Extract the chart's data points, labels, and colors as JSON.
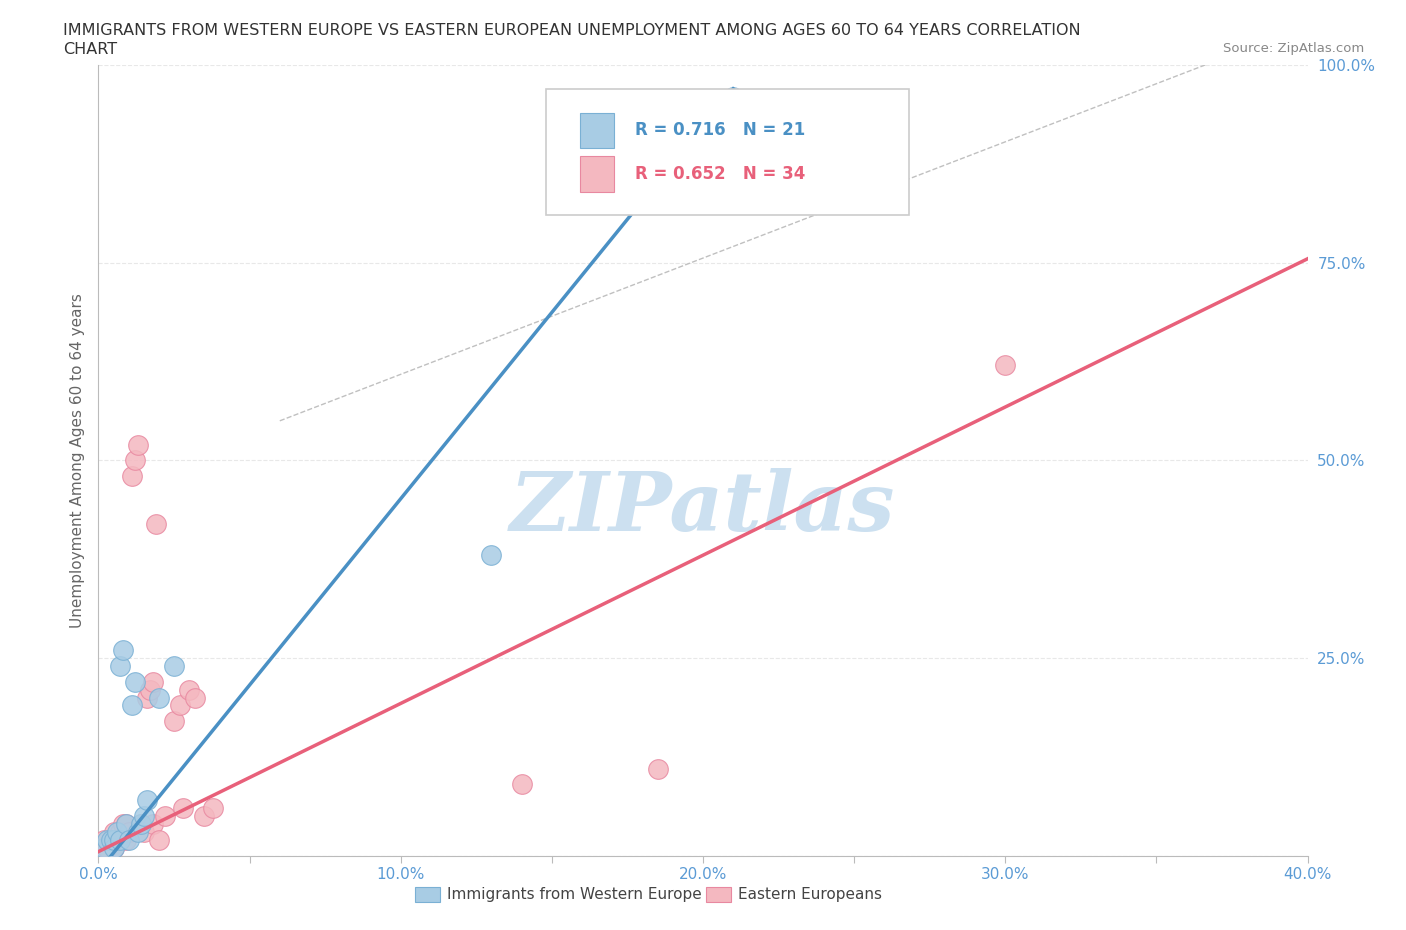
{
  "title_line1": "IMMIGRANTS FROM WESTERN EUROPE VS EASTERN EUROPEAN UNEMPLOYMENT AMONG AGES 60 TO 64 YEARS CORRELATION",
  "title_line2": "CHART",
  "source": "Source: ZipAtlas.com",
  "ylabel": "Unemployment Among Ages 60 to 64 years",
  "xlim": [
    0.0,
    0.4
  ],
  "ylim": [
    0.0,
    1.0
  ],
  "xtick_labels": [
    "0.0%",
    "",
    "10.0%",
    "",
    "20.0%",
    "",
    "30.0%",
    "",
    "40.0%"
  ],
  "xtick_vals": [
    0.0,
    0.05,
    0.1,
    0.15,
    0.2,
    0.25,
    0.3,
    0.35,
    0.4
  ],
  "ytick_labels": [
    "",
    "25.0%",
    "50.0%",
    "75.0%",
    "100.0%"
  ],
  "ytick_vals": [
    0.0,
    0.25,
    0.5,
    0.75,
    1.0
  ],
  "blue_color": "#a8cce4",
  "blue_edge": "#7ab0d4",
  "pink_color": "#f4b8c0",
  "pink_edge": "#e888a0",
  "blue_line_color": "#4a90c4",
  "pink_line_color": "#e8607a",
  "blue_R": 0.716,
  "blue_N": 21,
  "pink_R": 0.652,
  "pink_N": 34,
  "watermark": "ZIPatlas",
  "watermark_color": "#cce0f0",
  "blue_scatter_x": [
    0.002,
    0.003,
    0.004,
    0.005,
    0.005,
    0.006,
    0.007,
    0.007,
    0.008,
    0.009,
    0.01,
    0.011,
    0.012,
    0.013,
    0.014,
    0.015,
    0.016,
    0.02,
    0.025,
    0.13,
    0.21
  ],
  "blue_scatter_y": [
    0.01,
    0.02,
    0.02,
    0.01,
    0.02,
    0.03,
    0.02,
    0.24,
    0.26,
    0.04,
    0.02,
    0.19,
    0.22,
    0.03,
    0.04,
    0.05,
    0.07,
    0.2,
    0.24,
    0.38,
    0.96
  ],
  "pink_scatter_x": [
    0.001,
    0.002,
    0.003,
    0.004,
    0.005,
    0.005,
    0.006,
    0.007,
    0.008,
    0.009,
    0.009,
    0.01,
    0.011,
    0.012,
    0.013,
    0.014,
    0.015,
    0.016,
    0.017,
    0.018,
    0.018,
    0.019,
    0.02,
    0.022,
    0.025,
    0.027,
    0.028,
    0.03,
    0.032,
    0.035,
    0.038,
    0.14,
    0.185,
    0.3
  ],
  "pink_scatter_y": [
    0.01,
    0.02,
    0.01,
    0.02,
    0.01,
    0.03,
    0.02,
    0.03,
    0.04,
    0.02,
    0.04,
    0.03,
    0.48,
    0.5,
    0.52,
    0.04,
    0.03,
    0.2,
    0.21,
    0.22,
    0.04,
    0.42,
    0.02,
    0.05,
    0.17,
    0.19,
    0.06,
    0.21,
    0.2,
    0.05,
    0.06,
    0.09,
    0.11,
    0.62
  ],
  "blue_line_x": [
    0.0,
    0.21
  ],
  "blue_line_y": [
    -0.02,
    0.97
  ],
  "pink_line_x": [
    0.0,
    0.4
  ],
  "pink_line_y": [
    0.005,
    0.755
  ],
  "ref_line_x": [
    0.06,
    0.4
  ],
  "ref_line_y": [
    0.55,
    1.05
  ],
  "background_color": "#ffffff",
  "grid_color": "#e8e8e8",
  "tick_color": "#5b9bd5",
  "legend_box_color": "#ffffff",
  "legend_border_color": "#cccccc"
}
